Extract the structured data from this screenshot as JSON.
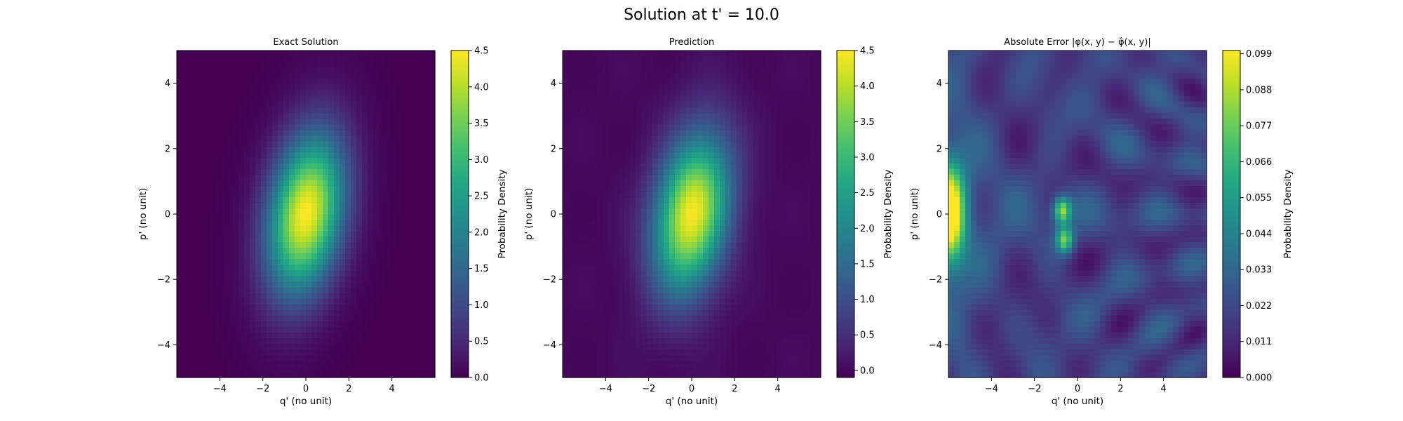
{
  "suptitle": "Solution at t' = 10.0",
  "chart_data": [
    {
      "type": "heatmap",
      "title": "Exact Solution",
      "xlabel": "q' (no unit)",
      "ylabel": "p' (no unit)",
      "xlim": [
        -6,
        6
      ],
      "ylim": [
        -5,
        5
      ],
      "xticks": [
        "−4",
        "−2",
        "0",
        "2",
        "4"
      ],
      "yticks": [
        "−4",
        "−2",
        "0",
        "2",
        "4"
      ],
      "colormap": "viridis",
      "colorbar": {
        "label": "Probability Density",
        "range": [
          0.0,
          4.5
        ],
        "ticks": [
          "0.0",
          "0.5",
          "1.0",
          "1.5",
          "2.0",
          "2.5",
          "3.0",
          "3.5",
          "4.0",
          "4.5"
        ]
      },
      "peak": {
        "q": 0.0,
        "p": 0.0,
        "value": 4.5
      }
    },
    {
      "type": "heatmap",
      "title": "Prediction",
      "xlabel": "q' (no unit)",
      "ylabel": "p' (no unit)",
      "xlim": [
        -6,
        6
      ],
      "ylim": [
        -5,
        5
      ],
      "xticks": [
        "−4",
        "−2",
        "0",
        "2",
        "4"
      ],
      "yticks": [
        "−4",
        "−2",
        "0",
        "2",
        "4"
      ],
      "colormap": "viridis",
      "colorbar": {
        "label": "Probability Density",
        "range": [
          -0.1,
          4.5
        ],
        "ticks": [
          "0.0",
          "0.5",
          "1.0",
          "1.5",
          "2.0",
          "2.5",
          "3.0",
          "3.5",
          "4.0",
          "4.5"
        ]
      },
      "peak": {
        "q": 0.0,
        "p": 0.0,
        "value": 4.5
      }
    },
    {
      "type": "heatmap",
      "title": "Absolute Error |φ(x, y) − φ̂(x, y)|",
      "xlabel": "q' (no unit)",
      "ylabel": "p' (no unit)",
      "xlim": [
        -6,
        6
      ],
      "ylim": [
        -5,
        5
      ],
      "xticks": [
        "−4",
        "−2",
        "0",
        "2",
        "4"
      ],
      "yticks": [
        "−4",
        "−2",
        "0",
        "2",
        "4"
      ],
      "colormap": "viridis",
      "colorbar": {
        "label": "Probability Density",
        "range": [
          0.0,
          0.1
        ],
        "ticks": [
          "0.000",
          "0.011",
          "0.022",
          "0.033",
          "0.044",
          "0.055",
          "0.066",
          "0.077",
          "0.088",
          "0.099"
        ]
      },
      "hotspots": [
        {
          "q": -6.0,
          "p": 0.0,
          "value": 0.099
        },
        {
          "q": -0.7,
          "p": 0.1,
          "value": 0.065
        },
        {
          "q": -0.6,
          "p": -0.8,
          "value": 0.06
        }
      ]
    }
  ]
}
